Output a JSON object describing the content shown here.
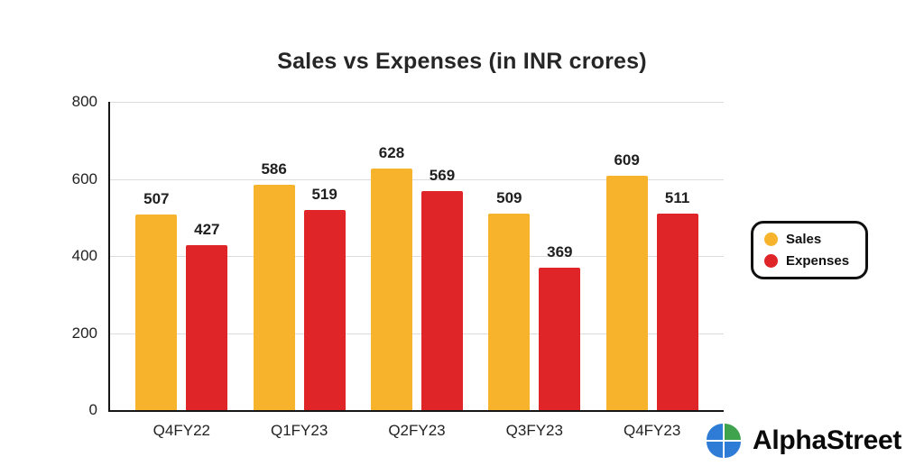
{
  "chart_data": {
    "type": "bar",
    "title": "Sales vs Expenses (in INR crores)",
    "categories": [
      "Q4FY22",
      "Q1FY23",
      "Q2FY23",
      "Q3FY23",
      "Q4FY23"
    ],
    "series": [
      {
        "name": "Sales",
        "color": "#F6B32B",
        "values": [
          507,
          586,
          628,
          509,
          609
        ]
      },
      {
        "name": "Expenses",
        "color": "#E02528",
        "values": [
          427,
          519,
          569,
          369,
          511
        ]
      }
    ],
    "xlabel": "",
    "ylabel": "",
    "ylim": [
      0,
      800
    ],
    "yticks": [
      0,
      200,
      400,
      600,
      800
    ],
    "grid": true,
    "legend_position": "right"
  },
  "branding": {
    "name": "AlphaStreet",
    "icon": "alphastreet-clover-icon",
    "icon_blue": "#2E7CD6",
    "icon_green": "#3FA34D"
  }
}
